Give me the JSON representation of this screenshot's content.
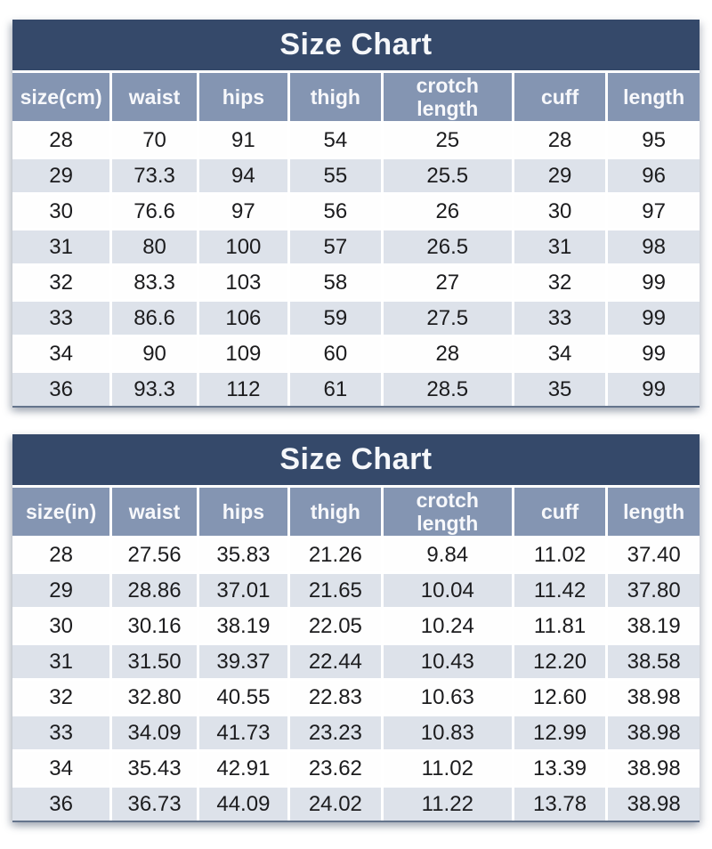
{
  "page_title": "Size Chart",
  "colors": {
    "page_bg": "#ffffff",
    "title_bar_bg": "#35496a",
    "title_text": "#f5f7fa",
    "header_bg": "#8495b2",
    "header_text": "#f7f8fb",
    "row_bg": "#fefefe",
    "row_alt_bg": "#dde2ea",
    "cell_text": "#1c1c1e",
    "divider": "#ffffff",
    "table_bottom_edge": "#64748c"
  },
  "chart_data": [
    {
      "type": "table",
      "title": "Size Chart",
      "columns": [
        "size(cm)",
        "waist",
        "hips",
        "thigh",
        "crotch length",
        "cuff",
        "length"
      ],
      "rows": [
        [
          "28",
          "70",
          "91",
          "54",
          "25",
          "28",
          "95"
        ],
        [
          "29",
          "73.3",
          "94",
          "55",
          "25.5",
          "29",
          "96"
        ],
        [
          "30",
          "76.6",
          "97",
          "56",
          "26",
          "30",
          "97"
        ],
        [
          "31",
          "80",
          "100",
          "57",
          "26.5",
          "31",
          "98"
        ],
        [
          "32",
          "83.3",
          "103",
          "58",
          "27",
          "32",
          "99"
        ],
        [
          "33",
          "86.6",
          "106",
          "59",
          "27.5",
          "33",
          "99"
        ],
        [
          "34",
          "90",
          "109",
          "60",
          "28",
          "34",
          "99"
        ],
        [
          "36",
          "93.3",
          "112",
          "61",
          "28.5",
          "35",
          "99"
        ]
      ]
    },
    {
      "type": "table",
      "title": "Size Chart",
      "columns": [
        "size(in)",
        "waist",
        "hips",
        "thigh",
        "crotch length",
        "cuff",
        "length"
      ],
      "rows": [
        [
          "28",
          "27.56",
          "35.83",
          "21.26",
          "9.84",
          "11.02",
          "37.40"
        ],
        [
          "29",
          "28.86",
          "37.01",
          "21.65",
          "10.04",
          "11.42",
          "37.80"
        ],
        [
          "30",
          "30.16",
          "38.19",
          "22.05",
          "10.24",
          "11.81",
          "38.19"
        ],
        [
          "31",
          "31.50",
          "39.37",
          "22.44",
          "10.43",
          "12.20",
          "38.58"
        ],
        [
          "32",
          "32.80",
          "40.55",
          "22.83",
          "10.63",
          "12.60",
          "38.98"
        ],
        [
          "33",
          "34.09",
          "41.73",
          "23.23",
          "10.83",
          "12.99",
          "38.98"
        ],
        [
          "34",
          "35.43",
          "42.91",
          "23.62",
          "11.02",
          "13.39",
          "38.98"
        ],
        [
          "36",
          "36.73",
          "44.09",
          "24.02",
          "11.22",
          "13.78",
          "38.98"
        ]
      ]
    }
  ]
}
